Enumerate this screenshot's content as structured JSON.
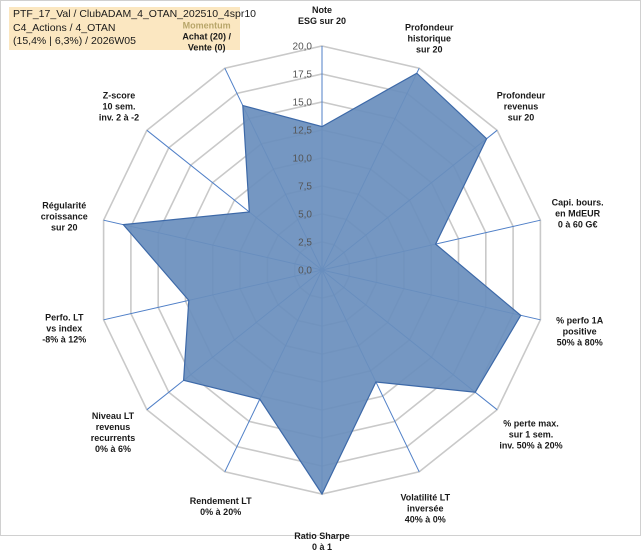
{
  "title_box": {
    "line1": "PTF_17_Val / ClubADAM_4_OTAN_202510_4spr10",
    "line2": "C4_Actions / 4_OTAN",
    "line3": "(15,4% | 6,3%) / 2026W05"
  },
  "chart_data": {
    "type": "radar",
    "title": "",
    "r_range": [
      0,
      20
    ],
    "r_ticks": [
      "0,0",
      "2,5",
      "5,0",
      "7,5",
      "10,0",
      "12,5",
      "15,0",
      "17,5",
      "20,0"
    ],
    "grid": true,
    "axes": [
      {
        "label_lines": [
          "Note",
          "ESG sur 20"
        ],
        "value": 12.8
      },
      {
        "label_lines": [
          "Profondeur",
          "historique",
          "sur 20"
        ],
        "value": 19.5
      },
      {
        "label_lines": [
          "Profondeur",
          "revenus",
          "sur 20"
        ],
        "value": 18.8
      },
      {
        "label_lines": [
          "Capi. bours.",
          "en MdEUR",
          "0 à 60 G€"
        ],
        "value": 10.4
      },
      {
        "label_lines": [
          "% perfo 1A",
          "positive",
          "50% à 80%"
        ],
        "value": 18.2
      },
      {
        "label_lines": [
          "% perte max.",
          "sur 1 sem.",
          "inv. 50% à 20%"
        ],
        "value": 17.5
      },
      {
        "label_lines": [
          "Volatilité LT",
          "inversée",
          "40% à 0%"
        ],
        "value": 11.1
      },
      {
        "label_lines": [
          "Ratio Sharpe",
          "0 à 1"
        ],
        "value": 20.0
      },
      {
        "label_lines": [
          "Rendement LT",
          "0% à 20%"
        ],
        "value": 12.8
      },
      {
        "label_lines": [
          "Niveau LT",
          "revenus",
          "recurrents",
          "0% à 6%"
        ],
        "value": 15.8
      },
      {
        "label_lines": [
          "Perfo. LT",
          "vs index",
          "-8% à 12%"
        ],
        "value": 12.2
      },
      {
        "label_lines": [
          "Régularité",
          "croissance",
          "sur 20"
        ],
        "value": 18.2
      },
      {
        "label_lines": [
          "Z-score",
          "10 sem.",
          "inv. 2 à -2"
        ],
        "value": 8.3
      },
      {
        "label_lines": [
          "Momentum",
          "Achat (20) /",
          "Vente (0)"
        ],
        "value": 16.3,
        "highlight_first": true
      }
    ],
    "fill_color": "#6b8fbd",
    "edge_color": "#3d69a8",
    "axis_color": "#4f7fc7",
    "grid_color": "#c9c9c9"
  }
}
